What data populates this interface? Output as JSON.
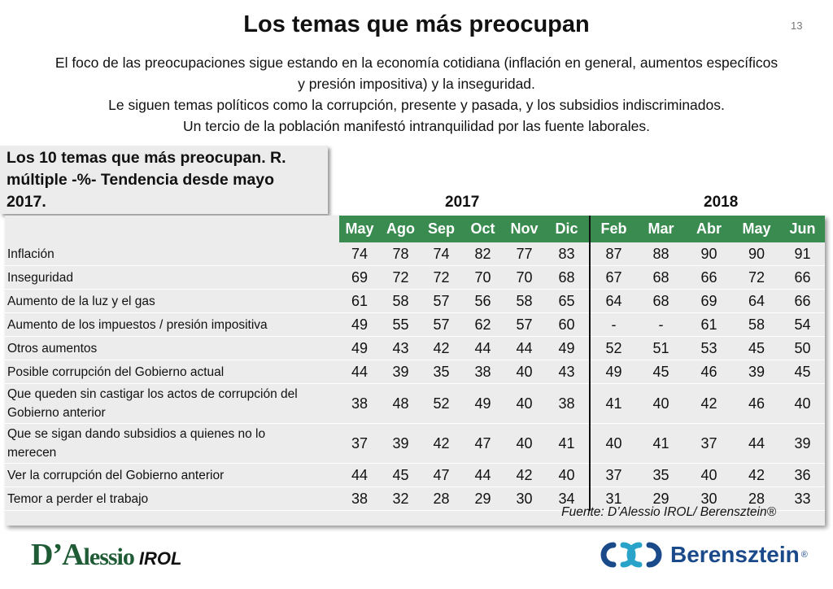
{
  "title": "Los temas que más preocupan",
  "page_number": "13",
  "intro": [
    "El foco de las preocupaciones sigue estando en la economía cotidiana (inflación en general, aumentos específicos",
    "y presión impositiva) y la inseguridad.",
    "Le siguen temas políticos como  la corrupción, presente y pasada, y los subsidios indiscriminados.",
    "Un tercio de la población manifestó intranquilidad por las fuente laborales."
  ],
  "subtitle_lines": [
    "Los 10 temas que más preocupan. R.",
    "múltiple -%- Tendencia desde mayo",
    "2017."
  ],
  "years": [
    "2017",
    "2018"
  ],
  "months": [
    "May",
    "Ago",
    "Sep",
    "Oct",
    "Nov",
    "Dic",
    "Feb",
    "Mar",
    "Abr",
    "May",
    "Jun"
  ],
  "rows": [
    {
      "label": [
        "Inflación"
      ],
      "values": [
        "74",
        "78",
        "74",
        "82",
        "77",
        "83",
        "87",
        "88",
        "90",
        "90",
        "91"
      ]
    },
    {
      "label": [
        "Inseguridad"
      ],
      "values": [
        "69",
        "72",
        "72",
        "70",
        "70",
        "68",
        "67",
        "68",
        "66",
        "72",
        "66"
      ]
    },
    {
      "label": [
        "Aumento de la luz y el gas"
      ],
      "values": [
        "61",
        "58",
        "57",
        "56",
        "58",
        "65",
        "64",
        "68",
        "69",
        "64",
        "66"
      ]
    },
    {
      "label": [
        "Aumento de los impuestos / presión impositiva"
      ],
      "values": [
        "49",
        "55",
        "57",
        "62",
        "57",
        "60",
        "-",
        "-",
        "61",
        "58",
        "54"
      ]
    },
    {
      "label": [
        "Otros aumentos"
      ],
      "values": [
        "49",
        "43",
        "42",
        "44",
        "44",
        "49",
        "52",
        "51",
        "53",
        "45",
        "50"
      ]
    },
    {
      "label": [
        "Posible corrupción del Gobierno actual"
      ],
      "values": [
        "44",
        "39",
        "35",
        "38",
        "40",
        "43",
        "49",
        "45",
        "46",
        "39",
        "45"
      ]
    },
    {
      "label": [
        "Que queden sin castigar los actos de corrupción del",
        "Gobierno anterior"
      ],
      "values": [
        "38",
        "48",
        "52",
        "49",
        "40",
        "38",
        "41",
        "40",
        "42",
        "46",
        "40"
      ]
    },
    {
      "label": [
        "Que se sigan dando subsidios a quienes no lo",
        "merecen"
      ],
      "values": [
        "37",
        "39",
        "42",
        "47",
        "40",
        "41",
        "40",
        "41",
        "37",
        "44",
        "39"
      ]
    },
    {
      "label": [
        "Ver la corrupción del Gobierno anterior"
      ],
      "values": [
        "44",
        "45",
        "47",
        "44",
        "42",
        "40",
        "37",
        "35",
        "40",
        "42",
        "36"
      ]
    },
    {
      "label": [
        "Temor a perder el trabajo"
      ],
      "values": [
        "38",
        "32",
        "28",
        "29",
        "30",
        "34",
        "31",
        "29",
        "30",
        "28",
        "33"
      ]
    }
  ],
  "source": "Fuente: D’Alessio IROL/ Berensztein®",
  "logo_left": {
    "name_big": "D’A",
    "name_rest": "lessio",
    "suffix": "IROL"
  },
  "logo_right": {
    "name": "Berensztein",
    "mark": "®"
  },
  "colors": {
    "header_bg": "#3a8b4f",
    "table_bg": "#ececec",
    "dalessio_green": "#1f5c35",
    "berensztein_blue": "#1a4a8a"
  }
}
